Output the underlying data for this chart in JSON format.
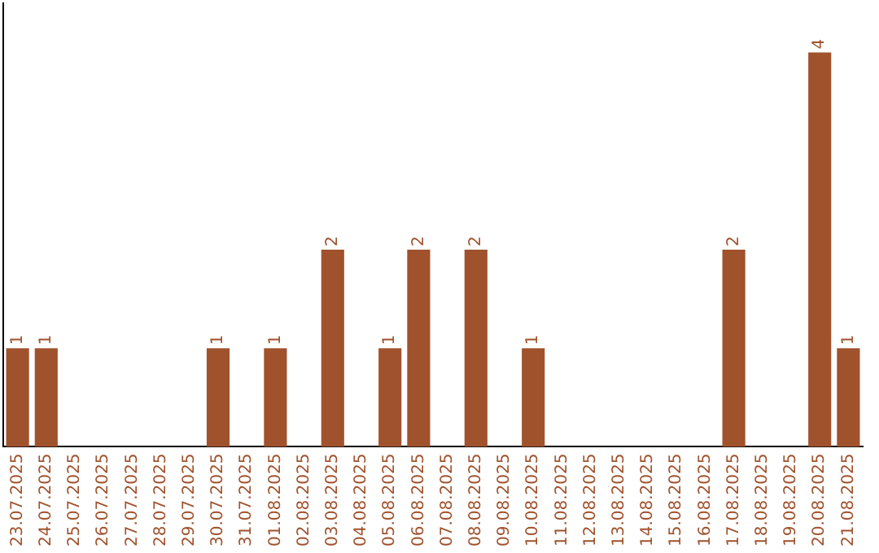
{
  "chart_data": {
    "type": "bar",
    "categories": [
      "23.07.2025",
      "24.07.2025",
      "25.07.2025",
      "26.07.2025",
      "27.07.2025",
      "28.07.2025",
      "29.07.2025",
      "30.07.2025",
      "31.07.2025",
      "01.08.2025",
      "02.08.2025",
      "03.08.2025",
      "04.08.2025",
      "05.08.2025",
      "06.08.2025",
      "07.08.2025",
      "08.08.2025",
      "09.08.2025",
      "10.08.2025",
      "11.08.2025",
      "12.08.2025",
      "13.08.2025",
      "14.08.2025",
      "15.08.2025",
      "16.08.2025",
      "17.08.2025",
      "18.08.2025",
      "19.08.2025",
      "20.08.2025",
      "21.08.2025"
    ],
    "values": [
      1,
      1,
      0,
      0,
      0,
      0,
      0,
      1,
      0,
      1,
      0,
      2,
      0,
      1,
      2,
      0,
      2,
      0,
      1,
      0,
      0,
      0,
      0,
      0,
      0,
      2,
      0,
      0,
      4,
      1
    ],
    "value_labels": [
      "1",
      "1",
      null,
      null,
      null,
      null,
      null,
      "1",
      null,
      "1",
      null,
      "2",
      null,
      "1",
      "2",
      null,
      "2",
      null,
      "1",
      null,
      null,
      null,
      null,
      null,
      null,
      "2",
      null,
      null,
      "4",
      "1"
    ],
    "color": "#a0522d",
    "grid": false,
    "legend": false,
    "tick_labels": "x"
  }
}
